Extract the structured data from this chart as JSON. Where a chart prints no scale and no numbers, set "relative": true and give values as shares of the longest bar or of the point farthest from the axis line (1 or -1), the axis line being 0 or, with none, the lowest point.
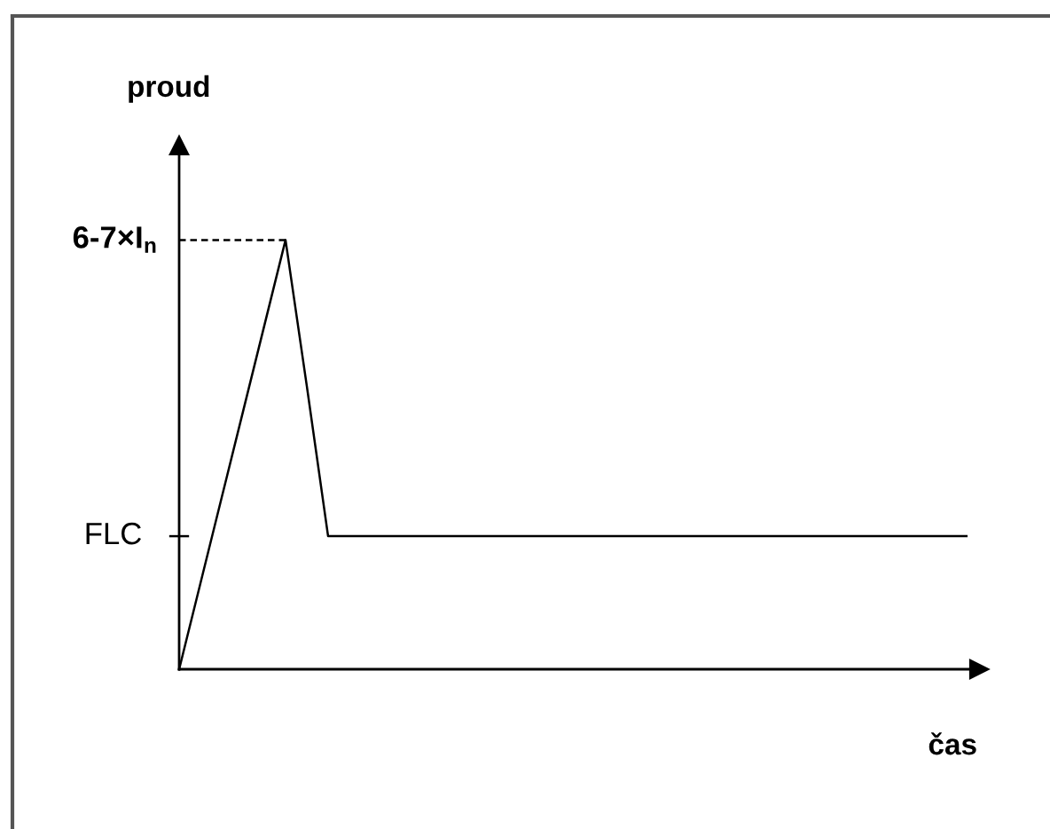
{
  "chart_data": {
    "type": "line",
    "relative": true,
    "xlabel": "čas",
    "ylabel": "proud",
    "categories": [
      null,
      null,
      null,
      null,
      null,
      null,
      null,
      null,
      null,
      null,
      null,
      null,
      null,
      null,
      null,
      null,
      null,
      null,
      null,
      null,
      null,
      null,
      null,
      null,
      null,
      null,
      null,
      null,
      null,
      null,
      null,
      null,
      null,
      null,
      null,
      null,
      null,
      null
    ],
    "series": [
      {
        "color": "#000000",
        "values": [
          0,
          0.2,
          0.4,
          0.6,
          0.8,
          1,
          0.66,
          0.31,
          0.31,
          0.31,
          0.31,
          0.31,
          0.31,
          0.31,
          0.31,
          0.31,
          0.31,
          0.31,
          0.31,
          0.31,
          0.31,
          0.31,
          0.31,
          0.31,
          0.31,
          0.31,
          0.31,
          0.31,
          0.31,
          0.31,
          0.31,
          0.31,
          0.31,
          0.31,
          0.31,
          0.31,
          0.31,
          0.31
        ]
      }
    ],
    "ref_lines": [
      {
        "axis": "y",
        "value": 1,
        "label": "6-7×I$_{n}$",
        "line_style": "dashed",
        "color": "#000000"
      }
    ],
    "annotations": [
      "FLC"
    ]
  }
}
